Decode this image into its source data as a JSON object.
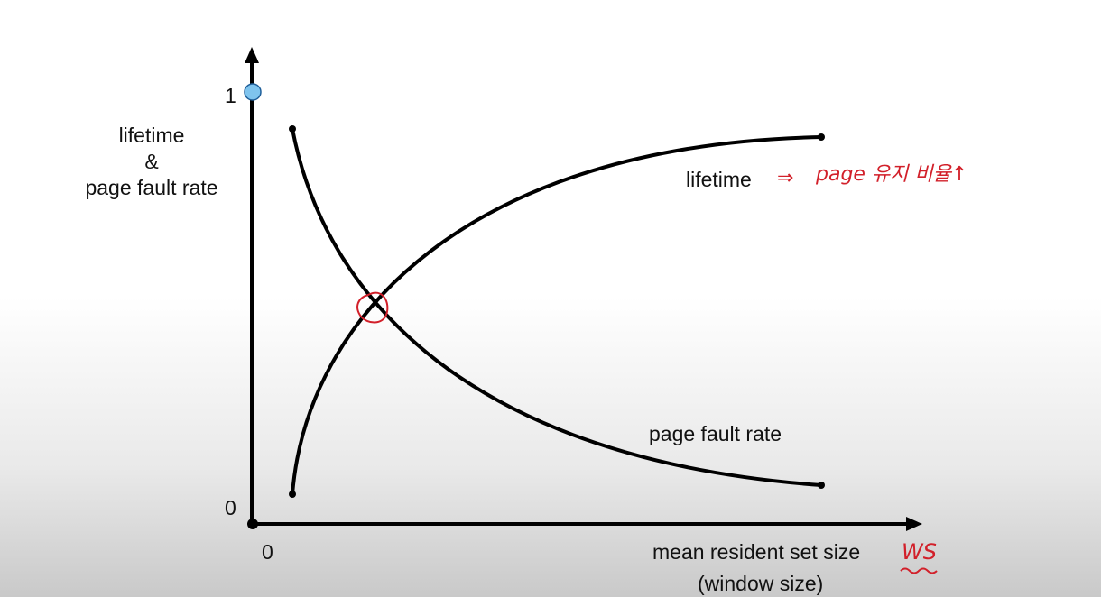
{
  "diagram": {
    "y_axis": {
      "label_line1": "lifetime",
      "label_line2": "&",
      "label_line3": "page fault rate",
      "tick_top": "1",
      "tick_bottom": "0"
    },
    "x_axis": {
      "tick_origin": "0",
      "label_line1": "mean resident set size",
      "label_line2": "(window size)"
    },
    "curves": {
      "lifetime_label": "lifetime",
      "page_fault_rate_label": "page fault rate"
    },
    "annotations": {
      "arrow": "⇒",
      "lifetime_note": "page 유지 비율↑",
      "ws_note": "WS"
    },
    "colors": {
      "curve": "#000000",
      "annotation": "#d2202a",
      "marker_fill": "#7fc4ee",
      "marker_stroke": "#1f5f9a"
    }
  }
}
